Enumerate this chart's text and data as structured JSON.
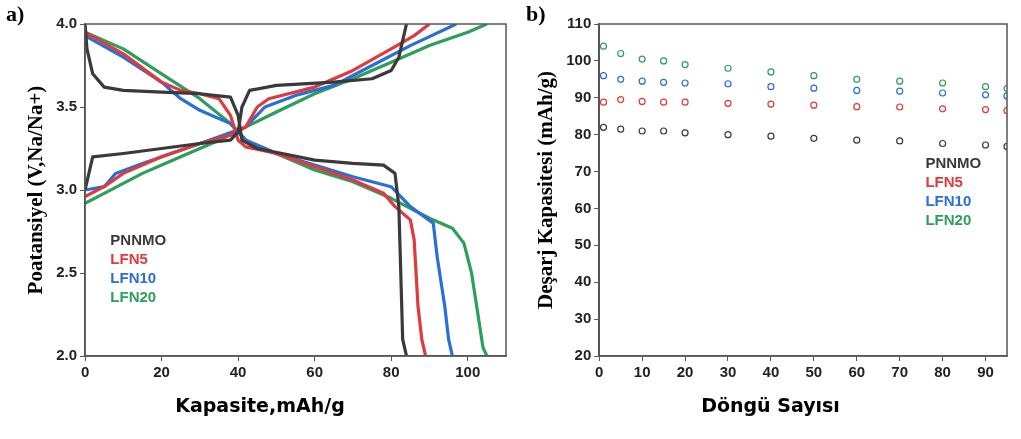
{
  "chart_data": [
    {
      "type": "line",
      "xlabel": "Kapasite,mAh/g",
      "ylabel": "Poatansiyel (V,Na/Na+)",
      "annotations": [
        "a)"
      ],
      "xlim": [
        0,
        110
      ],
      "xticks": [
        0,
        20,
        40,
        60,
        80,
        100
      ],
      "ylim": [
        2,
        4
      ],
      "yticks": [
        {
          "value": 2,
          "label": "2.0"
        },
        {
          "value": 2.5,
          "label": "2.5"
        },
        {
          "value": 3,
          "label": "3.0"
        },
        {
          "value": 3.5,
          "label": "3.5"
        },
        {
          "value": 4,
          "label": "4.0"
        }
      ],
      "grid": false,
      "legend": "bottom left",
      "marker": "none",
      "line_style": "solid",
      "series": [
        {
          "name": "PNNMO",
          "color": "#3a3a3a",
          "x": [
            0,
            2,
            10,
            20,
            30,
            38,
            40,
            41,
            43,
            50,
            65,
            75,
            80,
            82,
            84,
            null,
            0,
            0.5,
            2,
            5,
            10,
            20,
            30,
            38,
            40,
            41,
            45,
            60,
            70,
            78,
            81,
            82,
            82.5,
            83,
            84
          ],
          "values": [
            3.0,
            3.2,
            3.22,
            3.25,
            3.28,
            3.3,
            3.35,
            3.5,
            3.6,
            3.63,
            3.65,
            3.67,
            3.72,
            3.8,
            4.0,
            null,
            4.0,
            3.85,
            3.7,
            3.62,
            3.6,
            3.59,
            3.58,
            3.56,
            3.45,
            3.3,
            3.25,
            3.18,
            3.16,
            3.15,
            3.1,
            2.9,
            2.5,
            2.1,
            2.0
          ]
        },
        {
          "name": "LFN5",
          "color": "#e0393e",
          "x": [
            0,
            5,
            10,
            20,
            30,
            38,
            42,
            45,
            48,
            60,
            70,
            80,
            86,
            90,
            null,
            0,
            10,
            20,
            25,
            30,
            35,
            38,
            40,
            42,
            50,
            60,
            70,
            78,
            81,
            85,
            86,
            87,
            88,
            89
          ],
          "values": [
            2.96,
            3.02,
            3.1,
            3.2,
            3.28,
            3.33,
            3.38,
            3.5,
            3.55,
            3.62,
            3.72,
            3.85,
            3.93,
            4.0,
            null,
            3.95,
            3.82,
            3.65,
            3.6,
            3.58,
            3.55,
            3.45,
            3.3,
            3.26,
            3.22,
            3.14,
            3.06,
            2.98,
            2.9,
            2.82,
            2.7,
            2.3,
            2.1,
            2.0
          ]
        },
        {
          "name": "LFN10",
          "color": "#2a6fd6",
          "x": [
            0,
            5,
            8,
            15,
            25,
            35,
            42,
            47,
            55,
            65,
            75,
            85,
            97,
            null,
            0,
            10,
            20,
            25,
            30,
            38,
            42,
            50,
            60,
            70,
            80,
            85,
            91,
            92,
            94,
            95,
            96
          ],
          "values": [
            3.0,
            3.02,
            3.1,
            3.16,
            3.24,
            3.32,
            3.38,
            3.5,
            3.57,
            3.63,
            3.75,
            3.87,
            4.0,
            null,
            3.93,
            3.8,
            3.65,
            3.55,
            3.48,
            3.4,
            3.3,
            3.22,
            3.15,
            3.08,
            3.02,
            2.9,
            2.8,
            2.6,
            2.3,
            2.1,
            2.0
          ]
        },
        {
          "name": "LFN20",
          "color": "#2e9e5b",
          "x": [
            0,
            5,
            15,
            25,
            35,
            42,
            50,
            60,
            70,
            80,
            90,
            100,
            105,
            null,
            0,
            10,
            20,
            30,
            38,
            42,
            50,
            60,
            70,
            80,
            90,
            96,
            99,
            101,
            103,
            104,
            105
          ],
          "values": [
            2.92,
            2.98,
            3.1,
            3.2,
            3.3,
            3.38,
            3.47,
            3.58,
            3.67,
            3.77,
            3.87,
            3.95,
            4.0,
            null,
            3.95,
            3.85,
            3.7,
            3.55,
            3.4,
            3.3,
            3.22,
            3.12,
            3.05,
            2.95,
            2.83,
            2.77,
            2.68,
            2.5,
            2.2,
            2.05,
            2.0
          ]
        }
      ]
    },
    {
      "type": "scatter",
      "xlabel": "Döngü Sayısı",
      "ylabel": "Deşarj Kapasitesi (mAh/g)",
      "annotations": [
        "b)"
      ],
      "xlim": [
        0,
        95
      ],
      "xticks": [
        0,
        10,
        20,
        30,
        40,
        50,
        60,
        70,
        80,
        90
      ],
      "ylim": [
        20,
        110
      ],
      "yticks": [
        20,
        30,
        40,
        50,
        60,
        70,
        80,
        90,
        100,
        110
      ],
      "grid": false,
      "legend": "right",
      "marker": "circle",
      "x": [
        1,
        5,
        10,
        15,
        20,
        30,
        40,
        50,
        60,
        70,
        80,
        90,
        95
      ],
      "series": [
        {
          "name": "PNNMO",
          "color": "#3a3a3a",
          "values": [
            82,
            81.5,
            81,
            81,
            80.5,
            80,
            79.6,
            79,
            78.5,
            78.3,
            77.6,
            77.2,
            76.8
          ]
        },
        {
          "name": "LFN5",
          "color": "#e0393e",
          "values": [
            88.8,
            89.5,
            89,
            88.8,
            88.8,
            88.5,
            88.3,
            88,
            87.6,
            87.5,
            87,
            86.8,
            86.5
          ]
        },
        {
          "name": "LFN10",
          "color": "#2a6fd6",
          "values": [
            96,
            95,
            94.5,
            94.2,
            94,
            93.8,
            93,
            92.6,
            92,
            91.8,
            91.3,
            90.8,
            90.5
          ]
        },
        {
          "name": "LFN20",
          "color": "#2e9e5b",
          "values": [
            104,
            102,
            100.5,
            100,
            99,
            98,
            97,
            96,
            95,
            94.5,
            94,
            93,
            92.5
          ]
        }
      ]
    }
  ]
}
